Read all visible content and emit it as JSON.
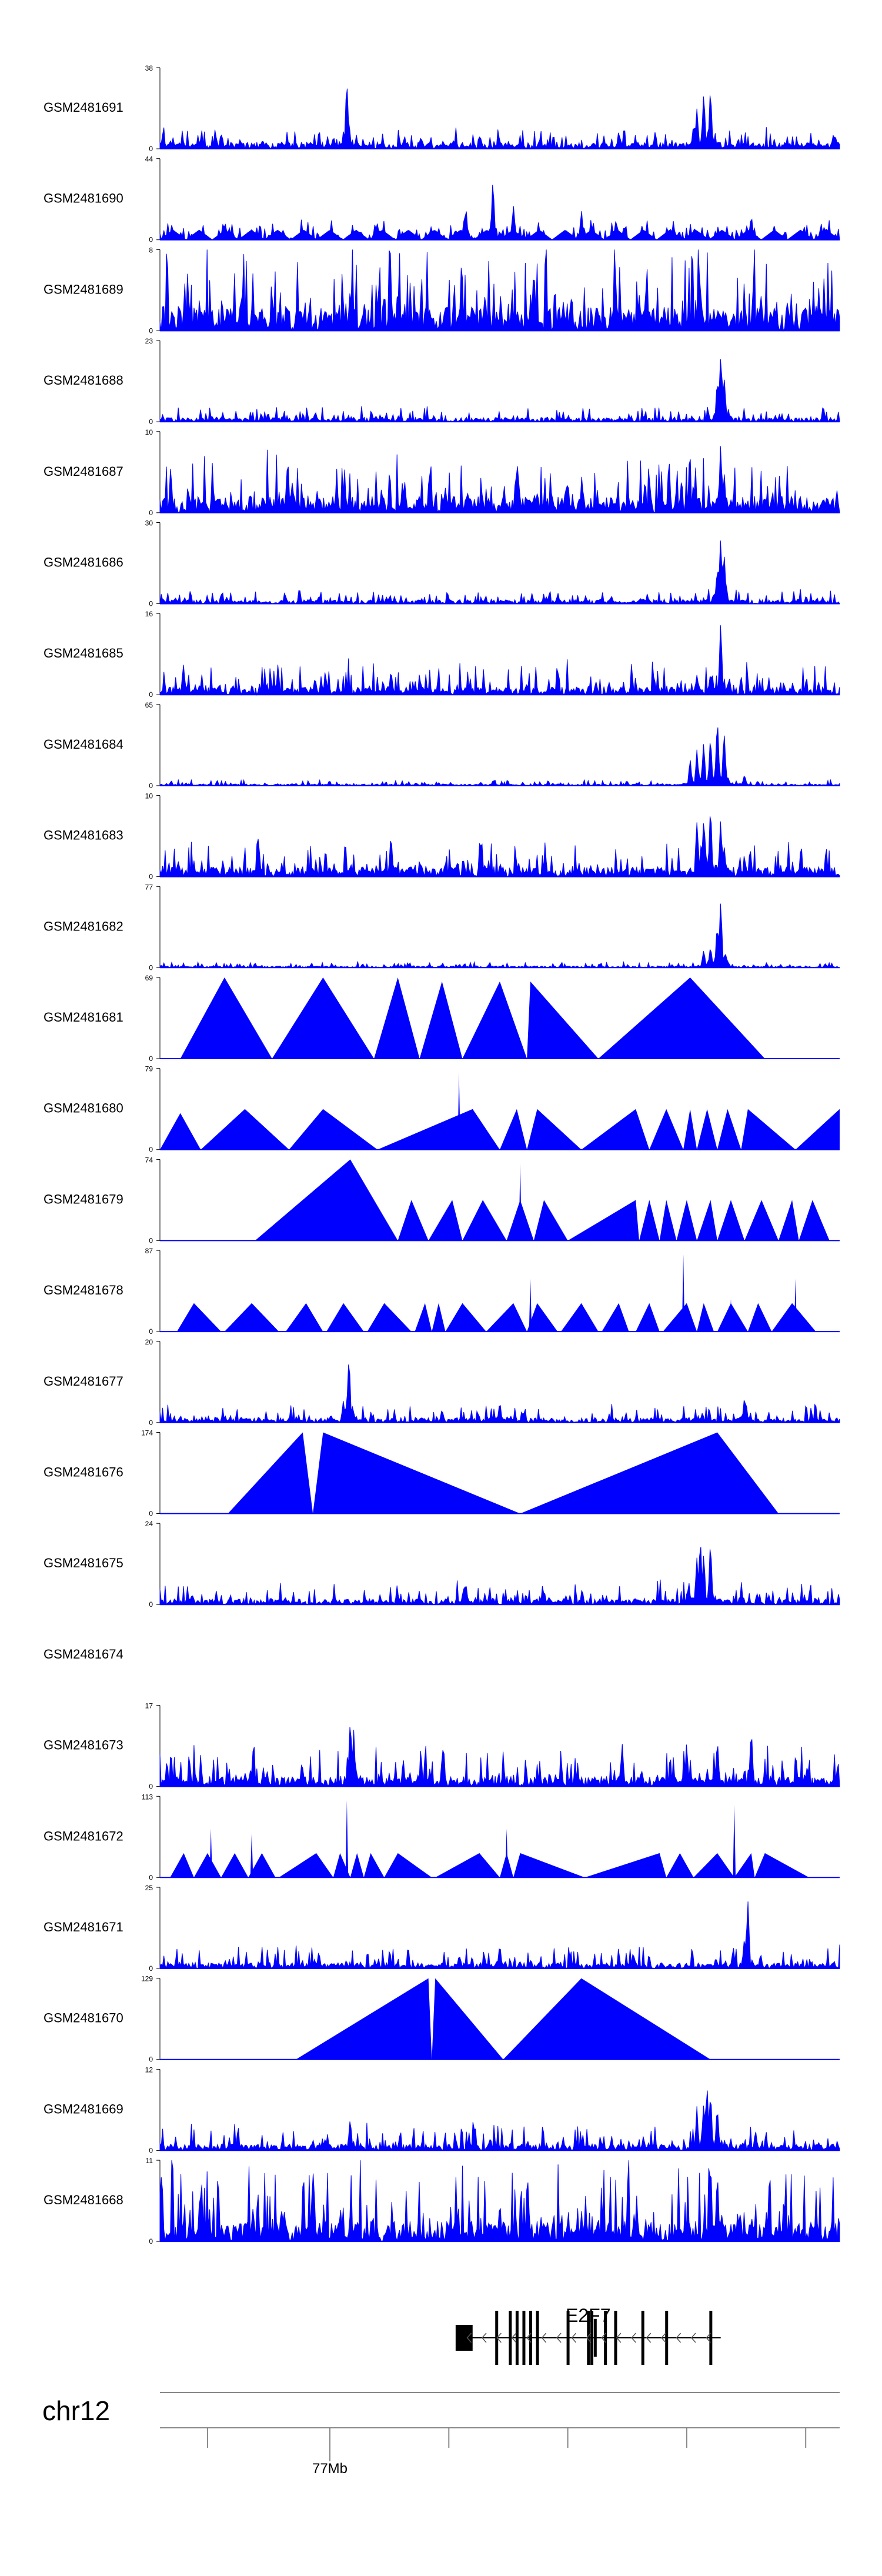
{
  "chart_data": {
    "type": "area",
    "title": "",
    "xlabel": "",
    "ylabel": "",
    "grid": false,
    "legend": "none",
    "fill_color": "#0000FF",
    "axis_color": "#000000",
    "tracks": [
      {
        "name": "GSM2481691",
        "ymax": "38",
        "ymin": "0",
        "style": "dense",
        "base": 0.08,
        "noise": 0.1,
        "seed": 11,
        "peaks": [
          [
            0.275,
            0.95
          ],
          [
            0.785,
            0.35
          ],
          [
            0.8,
            0.75
          ],
          [
            0.81,
            0.85
          ],
          [
            0.79,
            0.55
          ]
        ]
      },
      {
        "name": "GSM2481690",
        "ymax": "44",
        "ymin": "0",
        "style": "sparse",
        "base": 0.1,
        "noise": 0.15,
        "seed": 12,
        "peaks": [
          [
            0.49,
            0.85
          ],
          [
            0.45,
            0.45
          ],
          [
            0.52,
            0.5
          ],
          [
            0.62,
            0.4
          ],
          [
            0.87,
            0.35
          ]
        ]
      },
      {
        "name": "GSM2481689",
        "ymax": "8",
        "ymin": "0",
        "style": "dense",
        "base": 0.3,
        "noise": 0.45,
        "seed": 13,
        "peaks": [
          [
            0.55,
            0.85
          ],
          [
            0.67,
            0.8
          ],
          [
            0.34,
            0.55
          ],
          [
            0.28,
            0.6
          ]
        ]
      },
      {
        "name": "GSM2481688",
        "ymax": "23",
        "ymin": "0",
        "style": "dense",
        "base": 0.05,
        "noise": 0.08,
        "seed": 14,
        "peaks": [
          [
            0.825,
            0.95
          ],
          [
            0.83,
            0.65
          ],
          [
            0.82,
            0.55
          ]
        ]
      },
      {
        "name": "GSM2481687",
        "ymax": "10",
        "ymin": "0",
        "style": "dense",
        "base": 0.2,
        "noise": 0.3,
        "seed": 15,
        "peaks": [
          [
            0.825,
            0.95
          ],
          [
            0.83,
            0.55
          ],
          [
            0.36,
            0.45
          ],
          [
            0.6,
            0.45
          ]
        ]
      },
      {
        "name": "GSM2481686",
        "ymax": "30",
        "ymin": "0",
        "style": "dense",
        "base": 0.05,
        "noise": 0.07,
        "seed": 16,
        "peaks": [
          [
            0.825,
            0.95
          ],
          [
            0.83,
            0.7
          ],
          [
            0.82,
            0.5
          ]
        ]
      },
      {
        "name": "GSM2481685",
        "ymax": "16",
        "ymin": "0",
        "style": "dense",
        "base": 0.1,
        "noise": 0.18,
        "seed": 17,
        "peaks": [
          [
            0.825,
            0.95
          ],
          [
            0.81,
            0.3
          ],
          [
            0.34,
            0.35
          ],
          [
            0.79,
            0.28
          ]
        ]
      },
      {
        "name": "GSM2481684",
        "ymax": "65",
        "ymin": "0",
        "style": "dense",
        "base": 0.02,
        "noise": 0.03,
        "seed": 18,
        "peaks": [
          [
            0.79,
            0.45
          ],
          [
            0.8,
            0.6
          ],
          [
            0.81,
            0.7
          ],
          [
            0.82,
            0.95
          ],
          [
            0.83,
            0.75
          ],
          [
            0.78,
            0.35
          ],
          [
            0.86,
            0.15
          ]
        ]
      },
      {
        "name": "GSM2481683",
        "ymax": "10",
        "ymin": "0",
        "style": "dense",
        "base": 0.12,
        "noise": 0.18,
        "seed": 19,
        "peaks": [
          [
            0.79,
            0.75
          ],
          [
            0.8,
            0.85
          ],
          [
            0.81,
            0.95
          ],
          [
            0.825,
            0.8
          ],
          [
            0.34,
            0.6
          ],
          [
            0.83,
            0.45
          ]
        ]
      },
      {
        "name": "GSM2481682",
        "ymax": "77",
        "ymin": "0",
        "style": "dense",
        "base": 0.02,
        "noise": 0.03,
        "seed": 20,
        "peaks": [
          [
            0.825,
            0.95
          ],
          [
            0.82,
            0.6
          ],
          [
            0.8,
            0.25
          ],
          [
            0.81,
            0.3
          ]
        ]
      },
      {
        "name": "GSM2481681",
        "ymax": "69",
        "ymin": "0",
        "style": "tri",
        "seed": 21,
        "tris": [
          [
            0.03,
            0.095,
            0.165,
            1.0
          ],
          [
            0.165,
            0.24,
            0.315,
            1.0
          ],
          [
            0.315,
            0.35,
            0.382,
            1.0
          ],
          [
            0.382,
            0.415,
            0.445,
            0.95
          ],
          [
            0.445,
            0.5,
            0.54,
            0.95
          ],
          [
            0.54,
            0.545,
            0.645,
            0.95
          ],
          [
            0.645,
            0.78,
            0.89,
            1.0
          ]
        ]
      },
      {
        "name": "GSM2481680",
        "ymax": "79",
        "ymin": "0",
        "style": "tri",
        "seed": 22,
        "tris": [
          [
            0.0,
            0.03,
            0.06,
            0.45
          ],
          [
            0.06,
            0.125,
            0.19,
            0.5
          ],
          [
            0.19,
            0.24,
            0.32,
            0.5
          ],
          [
            0.32,
            0.46,
            0.5,
            0.5
          ],
          [
            0.5,
            0.525,
            0.54,
            0.5
          ],
          [
            0.54,
            0.555,
            0.62,
            0.5
          ],
          [
            0.62,
            0.7,
            0.72,
            0.5
          ],
          [
            0.72,
            0.745,
            0.77,
            0.5
          ],
          [
            0.77,
            0.78,
            0.79,
            0.5
          ],
          [
            0.79,
            0.805,
            0.82,
            0.5
          ],
          [
            0.82,
            0.835,
            0.855,
            0.5
          ],
          [
            0.855,
            0.865,
            0.935,
            0.5
          ],
          [
            0.935,
            1.0,
            1.0,
            0.5
          ]
        ],
        "peaks": [
          [
            0.44,
            0.95
          ]
        ]
      },
      {
        "name": "GSM2481679",
        "ymax": "74",
        "ymin": "0",
        "style": "tri",
        "seed": 23,
        "tris": [
          [
            0.14,
            0.28,
            0.35,
            1.0
          ],
          [
            0.35,
            0.37,
            0.395,
            0.5
          ],
          [
            0.395,
            0.43,
            0.445,
            0.5
          ],
          [
            0.445,
            0.475,
            0.51,
            0.5
          ],
          [
            0.51,
            0.53,
            0.55,
            0.5
          ],
          [
            0.55,
            0.565,
            0.6,
            0.5
          ],
          [
            0.6,
            0.7,
            0.705,
            0.5
          ],
          [
            0.705,
            0.72,
            0.735,
            0.5
          ],
          [
            0.735,
            0.745,
            0.76,
            0.5
          ],
          [
            0.76,
            0.775,
            0.79,
            0.5
          ],
          [
            0.79,
            0.81,
            0.82,
            0.5
          ],
          [
            0.82,
            0.84,
            0.86,
            0.5
          ],
          [
            0.86,
            0.885,
            0.91,
            0.5
          ],
          [
            0.91,
            0.93,
            0.94,
            0.5
          ],
          [
            0.94,
            0.96,
            0.985,
            0.5
          ]
        ],
        "peaks": [
          [
            0.53,
            0.95
          ]
        ]
      },
      {
        "name": "GSM2481678",
        "ymax": "87",
        "ymin": "0",
        "style": "tri",
        "seed": 24,
        "tris": [
          [
            0.025,
            0.05,
            0.09,
            0.35
          ],
          [
            0.095,
            0.135,
            0.175,
            0.35
          ],
          [
            0.185,
            0.215,
            0.24,
            0.35
          ],
          [
            0.245,
            0.27,
            0.3,
            0.35
          ],
          [
            0.305,
            0.33,
            0.37,
            0.35
          ],
          [
            0.375,
            0.39,
            0.4,
            0.35
          ],
          [
            0.4,
            0.41,
            0.42,
            0.35
          ],
          [
            0.42,
            0.445,
            0.48,
            0.35
          ],
          [
            0.48,
            0.52,
            0.54,
            0.35
          ],
          [
            0.54,
            0.555,
            0.585,
            0.35
          ],
          [
            0.59,
            0.62,
            0.645,
            0.35
          ],
          [
            0.65,
            0.675,
            0.69,
            0.35
          ],
          [
            0.7,
            0.72,
            0.735,
            0.35
          ],
          [
            0.74,
            0.775,
            0.79,
            0.35
          ],
          [
            0.79,
            0.8,
            0.815,
            0.35
          ],
          [
            0.82,
            0.84,
            0.865,
            0.35
          ],
          [
            0.865,
            0.88,
            0.9,
            0.35
          ],
          [
            0.9,
            0.93,
            0.965,
            0.35
          ]
        ],
        "peaks": [
          [
            0.545,
            0.65
          ],
          [
            0.77,
            0.95
          ],
          [
            0.935,
            0.65
          ],
          [
            0.84,
            0.4
          ]
        ]
      },
      {
        "name": "GSM2481677",
        "ymax": "20",
        "ymin": "0",
        "style": "dense",
        "base": 0.06,
        "noise": 0.1,
        "seed": 25,
        "peaks": [
          [
            0.278,
            0.95
          ],
          [
            0.27,
            0.3
          ],
          [
            0.86,
            0.35
          ],
          [
            0.5,
            0.3
          ]
        ]
      },
      {
        "name": "GSM2481676",
        "ymax": "174",
        "ymin": "0",
        "style": "tri",
        "seed": 26,
        "tris": [
          [
            0.1,
            0.21,
            0.225,
            1.0
          ],
          [
            0.225,
            0.24,
            0.53,
            1.0
          ],
          [
            0.53,
            0.82,
            0.91,
            1.0
          ]
        ],
        "peaks": [
          [
            0.82,
            0.95
          ]
        ]
      },
      {
        "name": "GSM2481675",
        "ymax": "24",
        "ymin": "0",
        "style": "dense",
        "base": 0.07,
        "noise": 0.12,
        "seed": 27,
        "peaks": [
          [
            0.795,
            0.95
          ],
          [
            0.8,
            0.7
          ],
          [
            0.79,
            0.6
          ],
          [
            0.81,
            0.85
          ],
          [
            0.45,
            0.3
          ]
        ]
      },
      {
        "name": "GSM2481674",
        "ymax": "",
        "ymin": "",
        "style": "empty",
        "seed": 28
      },
      {
        "name": "GSM2481673",
        "ymax": "17",
        "ymin": "0",
        "style": "dense",
        "base": 0.12,
        "noise": 0.22,
        "seed": 29,
        "peaks": [
          [
            0.28,
            0.95
          ],
          [
            0.285,
            0.75
          ],
          [
            0.82,
            0.65
          ],
          [
            0.87,
            0.85
          ],
          [
            0.775,
            0.6
          ],
          [
            0.68,
            0.55
          ]
        ]
      },
      {
        "name": "GSM2481672",
        "ymax": "113",
        "ymin": "0",
        "style": "tri",
        "seed": 30,
        "tris": [
          [
            0.015,
            0.035,
            0.05,
            0.3
          ],
          [
            0.05,
            0.07,
            0.09,
            0.3
          ],
          [
            0.09,
            0.11,
            0.13,
            0.3
          ],
          [
            0.13,
            0.15,
            0.17,
            0.3
          ],
          [
            0.175,
            0.23,
            0.255,
            0.3
          ],
          [
            0.255,
            0.265,
            0.28,
            0.3
          ],
          [
            0.28,
            0.29,
            0.3,
            0.3
          ],
          [
            0.3,
            0.31,
            0.33,
            0.3
          ],
          [
            0.33,
            0.35,
            0.4,
            0.3
          ],
          [
            0.405,
            0.47,
            0.5,
            0.3
          ],
          [
            0.5,
            0.51,
            0.52,
            0.3
          ],
          [
            0.52,
            0.53,
            0.625,
            0.3
          ],
          [
            0.625,
            0.735,
            0.745,
            0.3
          ],
          [
            0.745,
            0.765,
            0.785,
            0.3
          ],
          [
            0.785,
            0.82,
            0.845,
            0.3
          ],
          [
            0.845,
            0.87,
            0.875,
            0.3
          ],
          [
            0.875,
            0.89,
            0.955,
            0.3
          ]
        ],
        "peaks": [
          [
            0.275,
            0.95
          ],
          [
            0.845,
            0.9
          ],
          [
            0.075,
            0.6
          ],
          [
            0.135,
            0.55
          ],
          [
            0.51,
            0.6
          ]
        ]
      },
      {
        "name": "GSM2481671",
        "ymax": "25",
        "ymin": "0",
        "style": "dense",
        "base": 0.07,
        "noise": 0.12,
        "seed": 31,
        "peaks": [
          [
            0.865,
            0.95
          ],
          [
            0.86,
            0.45
          ],
          [
            0.5,
            0.35
          ]
        ]
      },
      {
        "name": "GSM2481670",
        "ymax": "129",
        "ymin": "0",
        "style": "tri",
        "seed": 32,
        "tris": [
          [
            0.2,
            0.395,
            0.4,
            1.0
          ],
          [
            0.4,
            0.405,
            0.505,
            1.0
          ],
          [
            0.505,
            0.62,
            0.81,
            1.0
          ]
        ]
      },
      {
        "name": "GSM2481669",
        "ymax": "12",
        "ymin": "0",
        "style": "dense",
        "base": 0.08,
        "noise": 0.14,
        "seed": 33,
        "peaks": [
          [
            0.8,
            0.65
          ],
          [
            0.81,
            0.8
          ],
          [
            0.79,
            0.55
          ],
          [
            0.805,
            0.95
          ],
          [
            0.28,
            0.45
          ],
          [
            0.82,
            0.6
          ]
        ]
      },
      {
        "name": "GSM2481668",
        "ymax": "11",
        "ymin": "0",
        "style": "dense",
        "base": 0.25,
        "noise": 0.4,
        "seed": 34,
        "peaks": [
          [
            0.225,
            0.95
          ],
          [
            0.82,
            0.95
          ],
          [
            0.5,
            0.55
          ]
        ]
      }
    ],
    "gene": {
      "name": "E2F7",
      "exons": [
        0.495,
        0.515,
        0.525,
        0.535,
        0.545,
        0.555,
        0.6,
        0.63,
        0.635,
        0.64,
        0.655,
        0.67,
        0.71,
        0.745,
        0.81
      ],
      "exon_heights": [
        1,
        1,
        1,
        1,
        1,
        1,
        1,
        1,
        1,
        0.7,
        1,
        1,
        1,
        1,
        1
      ],
      "start": 0.44,
      "end": 0.825,
      "utr": [
        0.435,
        0.46
      ],
      "direction": "minus"
    },
    "ideogram": {
      "chromosome": "chr12",
      "tick_positions": [
        0.07,
        0.25,
        0.425,
        0.6,
        0.775,
        0.95
      ],
      "labeled_tick": {
        "pos": 0.25,
        "label": "77Mb"
      }
    }
  }
}
